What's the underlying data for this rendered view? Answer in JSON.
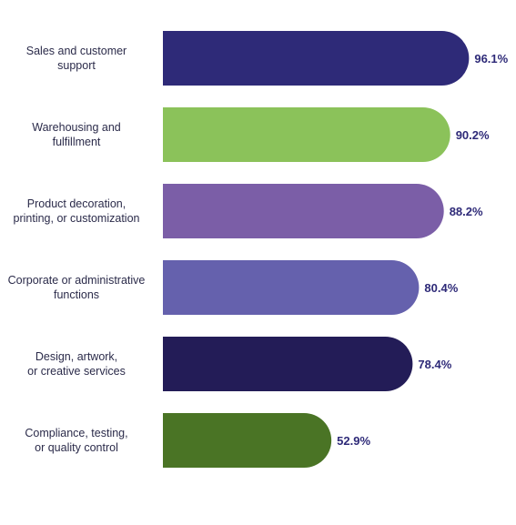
{
  "chart_data": {
    "type": "bar",
    "orientation": "horizontal",
    "categories": [
      "Sales and customer\nsupport",
      "Warehousing and\nfulfillment",
      "Product decoration,\nprinting, or customization",
      "Corporate or administrative\nfunctions",
      "Design, artwork,\nor creative services",
      "Compliance, testing,\nor quality control"
    ],
    "values": [
      96.1,
      90.2,
      88.2,
      80.4,
      78.4,
      52.9
    ],
    "value_labels": [
      "96.1%",
      "90.2%",
      "88.2%",
      "80.4%",
      "78.4%",
      "52.9%"
    ],
    "bar_colors": [
      "#2e2a78",
      "#8bc25a",
      "#7b5ea7",
      "#6561ad",
      "#231c57",
      "#4a7425"
    ],
    "xlim": [
      0,
      100
    ],
    "grid": false,
    "legend": "none"
  }
}
